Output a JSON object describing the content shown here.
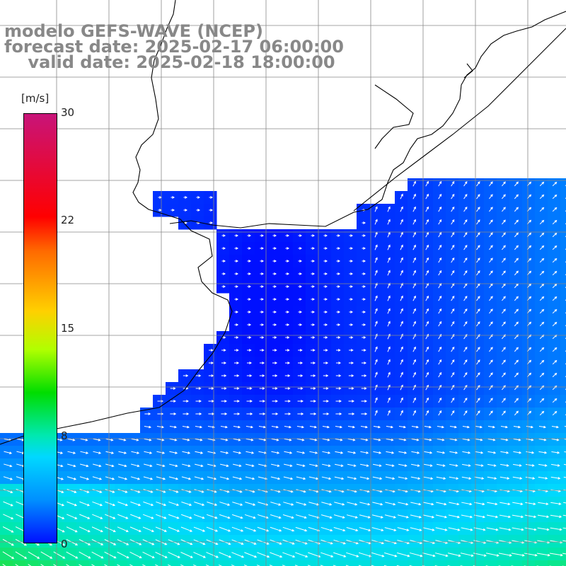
{
  "title": {
    "line1": "modelo GEFS-WAVE (NCEP)",
    "line2": "forecast date: 2025-02-17 06:00:00",
    "line3": "    valid date: 2025-02-18 18:00:00"
  },
  "colorbar": {
    "unit": "[m/s]",
    "ticks": [
      "30",
      "22",
      "15",
      "8",
      "0"
    ],
    "tick_values": [
      30,
      22,
      15,
      8,
      0
    ],
    "colors": [
      "#c81479",
      "#ff0000",
      "#ff6a00",
      "#ffd000",
      "#b0ff00",
      "#00dd00",
      "#00e8b0",
      "#00d8ff",
      "#0090ff",
      "#0010ff"
    ]
  },
  "map": {
    "land_color": "#ffffff",
    "coastline_color": "#000000",
    "grid_color": "#888888",
    "field": "wind speed with direction arrows"
  }
}
